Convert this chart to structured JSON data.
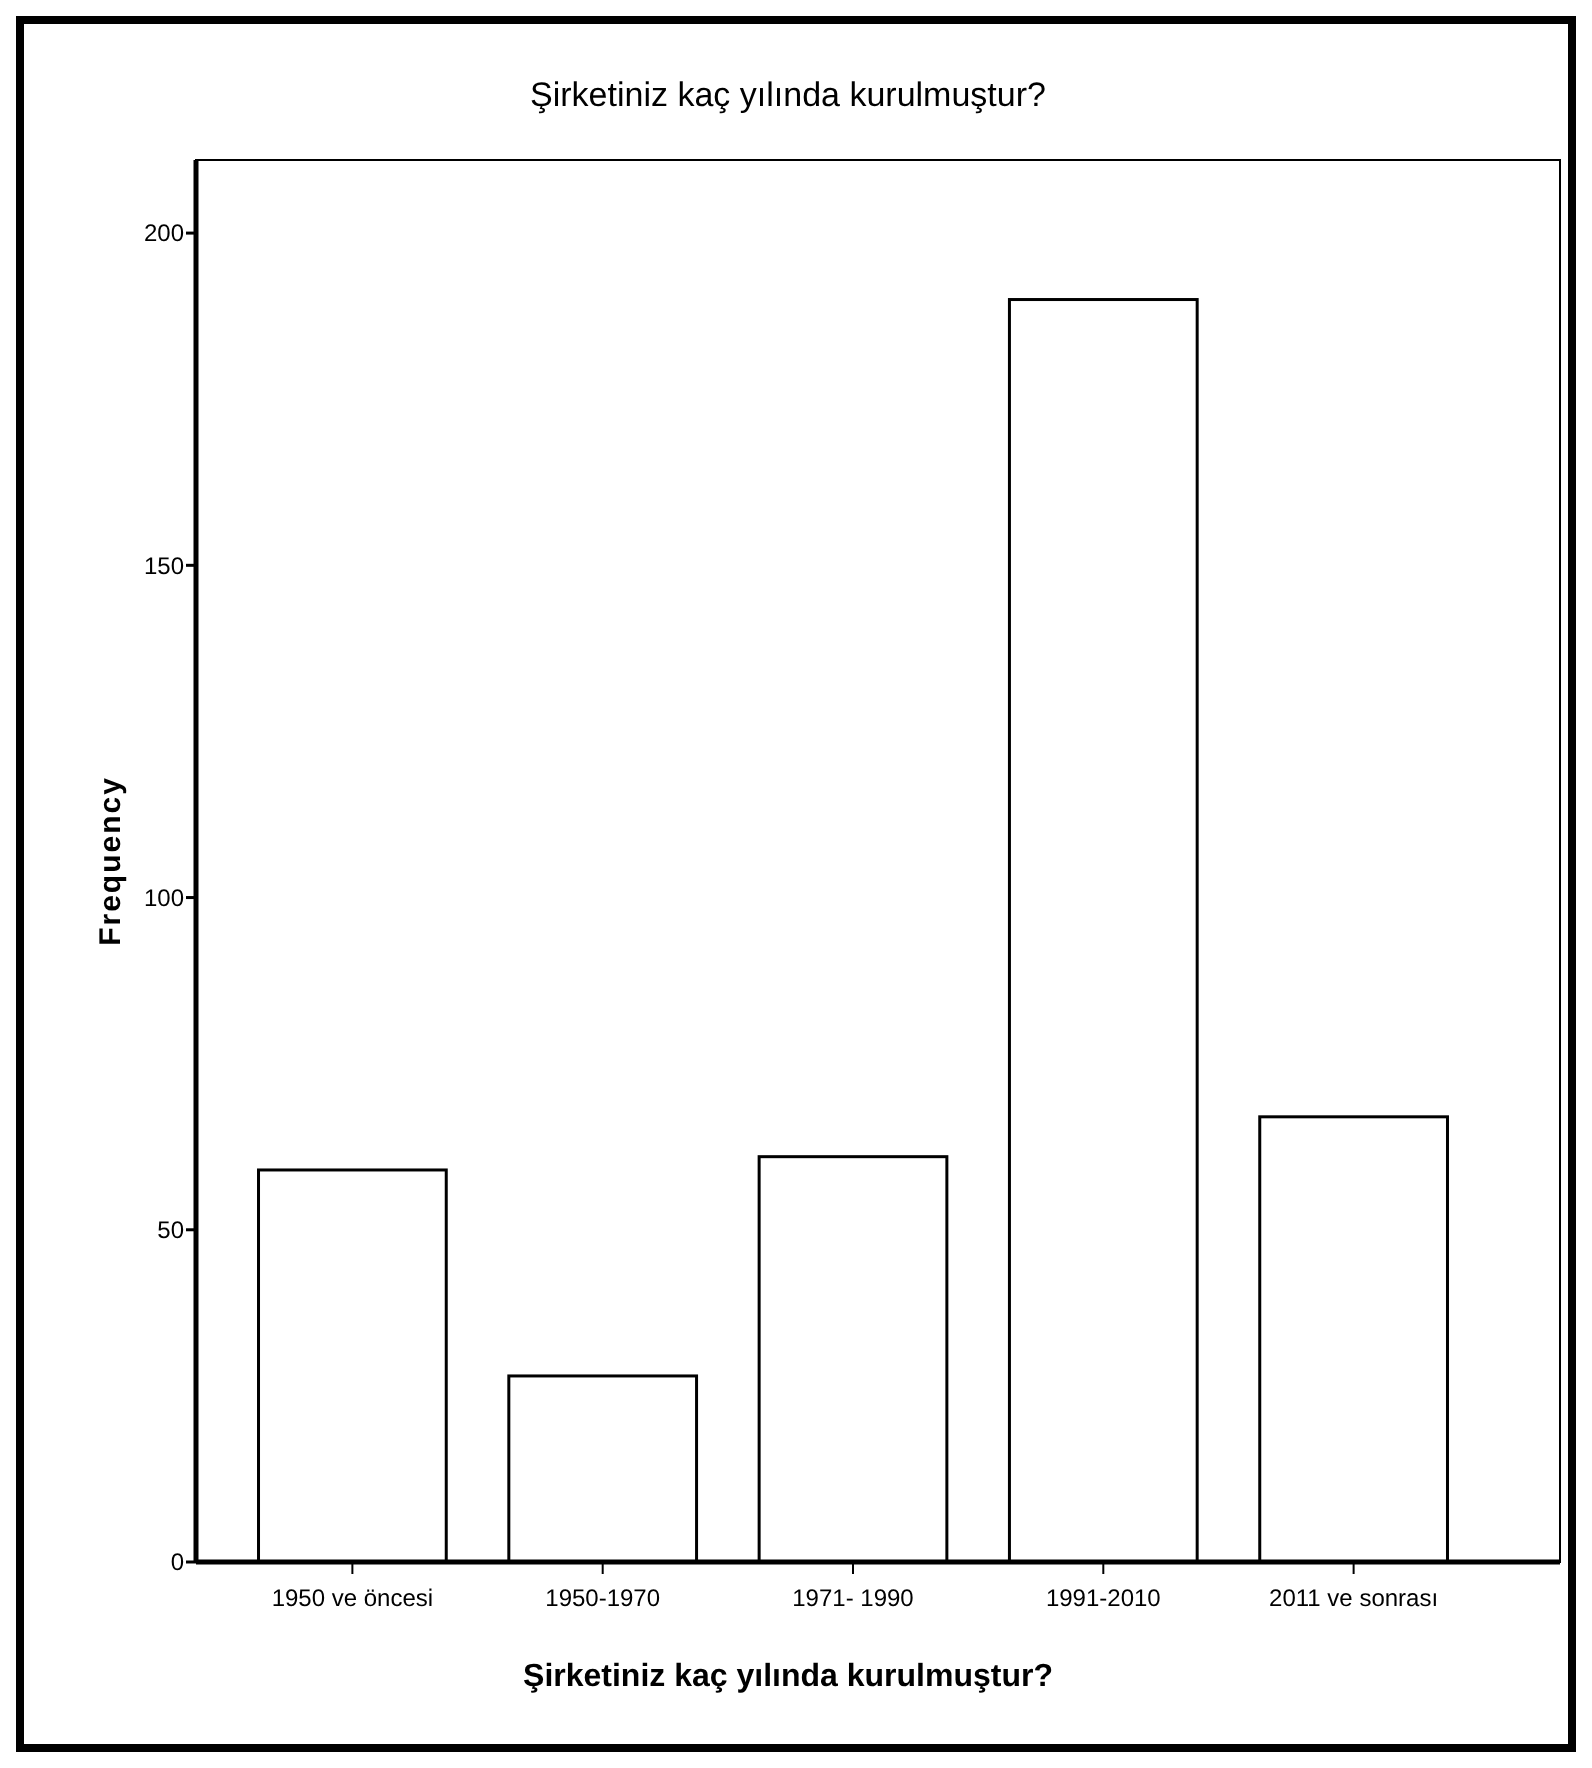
{
  "chart_data": {
    "type": "bar",
    "title": "Şirketiniz kaç yılında kurulmuştur?",
    "xlabel": "Şirketiniz kaç yılında kurulmuştur?",
    "ylabel": "Frequency",
    "categories": [
      "1950 ve öncesi",
      "1950-1970",
      "1971- 1990",
      "1991-2010",
      "2011 ve sonrası"
    ],
    "values": [
      59,
      28,
      61,
      190,
      67
    ],
    "color": "#ffffff",
    "ylim": [
      0,
      211
    ],
    "yticks": [
      0,
      50,
      100,
      150,
      200
    ],
    "grid": false
  }
}
